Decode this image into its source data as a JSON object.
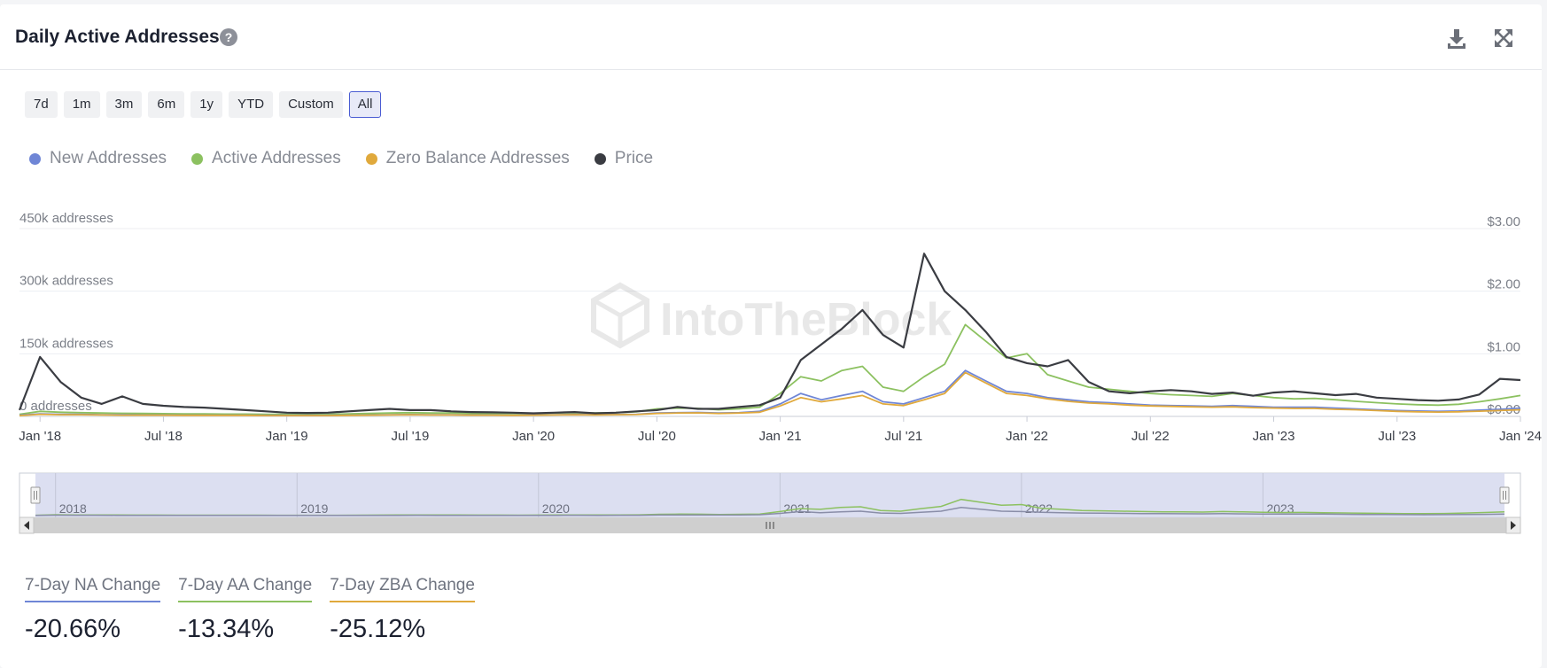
{
  "header": {
    "title": "Daily Active Addresses",
    "help_glyph": "?"
  },
  "ranges": [
    {
      "label": "7d",
      "active": false
    },
    {
      "label": "1m",
      "active": false
    },
    {
      "label": "3m",
      "active": false
    },
    {
      "label": "6m",
      "active": false
    },
    {
      "label": "1y",
      "active": false
    },
    {
      "label": "YTD",
      "active": false
    },
    {
      "label": "Custom",
      "active": false
    },
    {
      "label": "All",
      "active": true
    }
  ],
  "watermark": "IntoTheBlock",
  "colors": {
    "new": "#6f86d6",
    "active": "#8cc160",
    "zero": "#e0a93c",
    "price": "#3a3c42",
    "navigator_fill": "#d6d9ef",
    "scrollbar": "#cfcfcf"
  },
  "chart_data": {
    "type": "line",
    "title": "Daily Active Addresses",
    "x": [
      "Dec '17",
      "Jan '18",
      "Feb '18",
      "Mar '18",
      "Apr '18",
      "May '18",
      "Jun '18",
      "Jul '18",
      "Aug '18",
      "Sep '18",
      "Oct '18",
      "Nov '18",
      "Dec '18",
      "Jan '19",
      "Feb '19",
      "Mar '19",
      "Apr '19",
      "May '19",
      "Jun '19",
      "Jul '19",
      "Aug '19",
      "Sep '19",
      "Oct '19",
      "Nov '19",
      "Dec '19",
      "Jan '20",
      "Feb '20",
      "Mar '20",
      "Apr '20",
      "May '20",
      "Jun '20",
      "Jul '20",
      "Aug '20",
      "Sep '20",
      "Oct '20",
      "Nov '20",
      "Dec '20",
      "Jan '21",
      "Feb '21",
      "Mar '21",
      "Apr '21",
      "May '21",
      "Jun '21",
      "Jul '21",
      "Aug '21",
      "Sep '21",
      "Oct '21",
      "Nov '21",
      "Dec '21",
      "Jan '22",
      "Feb '22",
      "Mar '22",
      "Apr '22",
      "May '22",
      "Jun '22",
      "Jul '22",
      "Aug '22",
      "Sep '22",
      "Oct '22",
      "Nov '22",
      "Dec '22",
      "Jan '23",
      "Feb '23",
      "Mar '23",
      "Apr '23",
      "May '23",
      "Jun '23",
      "Jul '23",
      "Aug '23",
      "Sep '23",
      "Oct '23",
      "Nov '23",
      "Dec '23",
      "Jan '24"
    ],
    "y_left": {
      "label": "addresses",
      "min": 0,
      "max": 450000,
      "ticks": [
        "0 addresses",
        "150k addresses",
        "300k addresses",
        "450k addresses"
      ],
      "tick_values": [
        0,
        150000,
        300000,
        450000
      ]
    },
    "y_right": {
      "min": 0,
      "max": 3,
      "ticks": [
        "$0.00",
        "$1.00",
        "$2.00",
        "$3.00"
      ],
      "tick_values": [
        0,
        1,
        2,
        3
      ]
    },
    "x_ticks": [
      {
        "label": "Jan '18",
        "index": 1
      },
      {
        "label": "Jul '18",
        "index": 7
      },
      {
        "label": "Jan '19",
        "index": 13
      },
      {
        "label": "Jul '19",
        "index": 19
      },
      {
        "label": "Jan '20",
        "index": 25
      },
      {
        "label": "Jul '20",
        "index": 31
      },
      {
        "label": "Jan '21",
        "index": 37
      },
      {
        "label": "Jul '21",
        "index": 43
      },
      {
        "label": "Jan '22",
        "index": 49
      },
      {
        "label": "Jul '22",
        "index": 55
      },
      {
        "label": "Jan '23",
        "index": 61
      },
      {
        "label": "Jul '23",
        "index": 67
      },
      {
        "label": "Jan '24",
        "index": 73
      }
    ],
    "navigator_years": [
      {
        "label": "2018",
        "index": 1
      },
      {
        "label": "2019",
        "index": 13
      },
      {
        "label": "2020",
        "index": 25
      },
      {
        "label": "2021",
        "index": 37
      },
      {
        "label": "2022",
        "index": 49
      },
      {
        "label": "2023",
        "index": 61
      }
    ],
    "series": [
      {
        "name": "New Addresses",
        "axis": "left",
        "values": [
          3000,
          6000,
          5000,
          5000,
          4000,
          4000,
          3500,
          3500,
          3000,
          3000,
          3000,
          3000,
          2500,
          2500,
          2500,
          2500,
          3000,
          3500,
          4000,
          4500,
          4000,
          4000,
          3500,
          3500,
          3000,
          3500,
          4000,
          4500,
          4000,
          4500,
          5000,
          8000,
          9000,
          9500,
          8000,
          9000,
          12000,
          30000,
          55000,
          40000,
          50000,
          60000,
          35000,
          30000,
          45000,
          60000,
          110000,
          85000,
          60000,
          55000,
          45000,
          40000,
          35000,
          33000,
          30000,
          27000,
          26000,
          25000,
          24000,
          26000,
          24000,
          22000,
          22000,
          22000,
          20000,
          18000,
          16000,
          14000,
          13000,
          12000,
          13000,
          15000,
          17000,
          20000
        ]
      },
      {
        "name": "Active Addresses",
        "axis": "left",
        "values": [
          5000,
          12000,
          10000,
          9000,
          8000,
          7500,
          7000,
          6500,
          6000,
          6000,
          5500,
          5500,
          5000,
          5000,
          5000,
          5000,
          6000,
          7000,
          8000,
          9000,
          8000,
          8000,
          7000,
          7000,
          6500,
          7000,
          8000,
          9000,
          8000,
          9000,
          11000,
          18000,
          20000,
          19000,
          16000,
          18000,
          22000,
          55000,
          95000,
          85000,
          110000,
          120000,
          70000,
          60000,
          95000,
          125000,
          220000,
          180000,
          140000,
          150000,
          100000,
          85000,
          70000,
          65000,
          60000,
          55000,
          52000,
          50000,
          48000,
          55000,
          50000,
          45000,
          42000,
          43000,
          40000,
          36000,
          33000,
          30000,
          28000,
          27000,
          29000,
          35000,
          42000,
          50000
        ]
      },
      {
        "name": "Zero Balance Addresses",
        "axis": "left",
        "values": [
          2000,
          5000,
          4000,
          4000,
          3500,
          3000,
          3000,
          3000,
          2500,
          2500,
          2500,
          2500,
          2000,
          2000,
          2000,
          2000,
          2500,
          3000,
          3500,
          4000,
          3500,
          3500,
          3000,
          3000,
          2500,
          3000,
          3500,
          4000,
          3500,
          4000,
          4500,
          7000,
          8000,
          8500,
          7000,
          8000,
          10000,
          25000,
          45000,
          35000,
          42000,
          50000,
          30000,
          26000,
          40000,
          55000,
          105000,
          80000,
          55000,
          50000,
          42000,
          36000,
          32000,
          30000,
          27000,
          25000,
          24000,
          23000,
          22000,
          23000,
          21000,
          20000,
          19000,
          19000,
          17000,
          16000,
          14000,
          12000,
          11000,
          10500,
          11000,
          12500,
          14000,
          16000
        ]
      },
      {
        "name": "Price",
        "axis": "right",
        "values": [
          0.1,
          0.95,
          0.55,
          0.3,
          0.2,
          0.32,
          0.2,
          0.17,
          0.15,
          0.14,
          0.12,
          0.1,
          0.08,
          0.06,
          0.055,
          0.06,
          0.08,
          0.1,
          0.12,
          0.1,
          0.1,
          0.08,
          0.07,
          0.065,
          0.06,
          0.05,
          0.06,
          0.07,
          0.05,
          0.06,
          0.08,
          0.1,
          0.15,
          0.12,
          0.12,
          0.15,
          0.18,
          0.3,
          0.9,
          1.15,
          1.4,
          1.7,
          1.3,
          1.1,
          2.6,
          2.0,
          1.7,
          1.35,
          0.95,
          0.85,
          0.8,
          0.9,
          0.55,
          0.4,
          0.37,
          0.4,
          0.42,
          0.4,
          0.36,
          0.38,
          0.33,
          0.38,
          0.4,
          0.37,
          0.34,
          0.36,
          0.3,
          0.28,
          0.26,
          0.25,
          0.27,
          0.35,
          0.6,
          0.58
        ]
      }
    ],
    "legend": [
      {
        "name": "New Addresses",
        "color": "#6f86d6"
      },
      {
        "name": "Active Addresses",
        "color": "#8cc160"
      },
      {
        "name": "Zero Balance Addresses",
        "color": "#e0a93c"
      },
      {
        "name": "Price",
        "color": "#3a3c42"
      }
    ]
  },
  "stats": [
    {
      "label": "7-Day NA Change",
      "value": "-20.66%",
      "color": "#6f86d6"
    },
    {
      "label": "7-Day AA Change",
      "value": "-13.34%",
      "color": "#8cc160"
    },
    {
      "label": "7-Day ZBA Change",
      "value": "-25.12%",
      "color": "#e0a93c"
    }
  ]
}
